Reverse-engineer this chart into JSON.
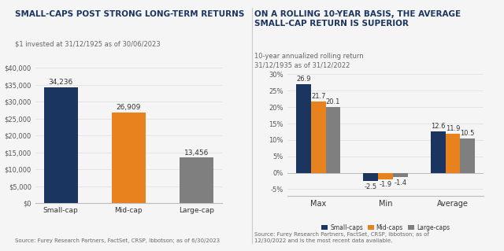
{
  "chart1": {
    "title": "SMALL-CAPS POST STRONG LONG-TERM RETURNS",
    "subtitle": "$1 invested at 31/12/1925 as of 30/06/2023",
    "categories": [
      "Small-cap",
      "Mid-cap",
      "Large-cap"
    ],
    "values": [
      34236,
      26909,
      13456
    ],
    "colors": [
      "#1a3560",
      "#e8821e",
      "#7f7f7f"
    ],
    "ylim": [
      0,
      40000
    ],
    "yticks": [
      0,
      5000,
      10000,
      15000,
      20000,
      25000,
      30000,
      35000,
      40000
    ],
    "source": "Source: Furey Research Partners, FactSet, CRSP, Ibbotson; as of 6/30/2023"
  },
  "chart2": {
    "title": "ON A ROLLING 10-YEAR BASIS, THE AVERAGE\nSMALL-CAP RETURN IS SUPERIOR",
    "subtitle": "10-year annualized rolling return\n31/12/1935 as of 31/12/2022",
    "groups": [
      "Max",
      "Min",
      "Average"
    ],
    "series": {
      "Small-caps": [
        26.9,
        -2.5,
        12.6
      ],
      "Mid-caps": [
        21.7,
        -1.9,
        11.9
      ],
      "Large-caps": [
        20.1,
        -1.4,
        10.5
      ]
    },
    "colors": {
      "Small-caps": "#1a3560",
      "Mid-caps": "#e8821e",
      "Large-caps": "#7f7f7f"
    },
    "ylim": [
      -7,
      32
    ],
    "yticks": [
      -5,
      0,
      5,
      10,
      15,
      20,
      25,
      30
    ],
    "source": "Source: Furey Research Partners, FactSet, CRSP, Ibbotson; as of\n12/30/2022 and is the most recent data available."
  },
  "bg_color": "#f5f5f5",
  "title_color": "#1a3560",
  "subtitle_color": "#666666",
  "source_color": "#666666"
}
